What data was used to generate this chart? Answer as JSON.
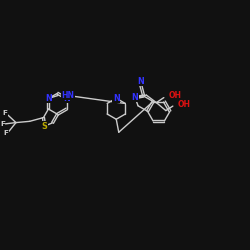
{
  "bg": "#111111",
  "bc": "#cccccc",
  "bw": 1.0,
  "fs": 5.8,
  "N_color": "#3333ff",
  "S_color": "#bbaa00",
  "F_color": "#cccccc",
  "O_color": "#dd1111",
  "xlim": [
    0,
    10
  ],
  "ylim": [
    0,
    10
  ]
}
